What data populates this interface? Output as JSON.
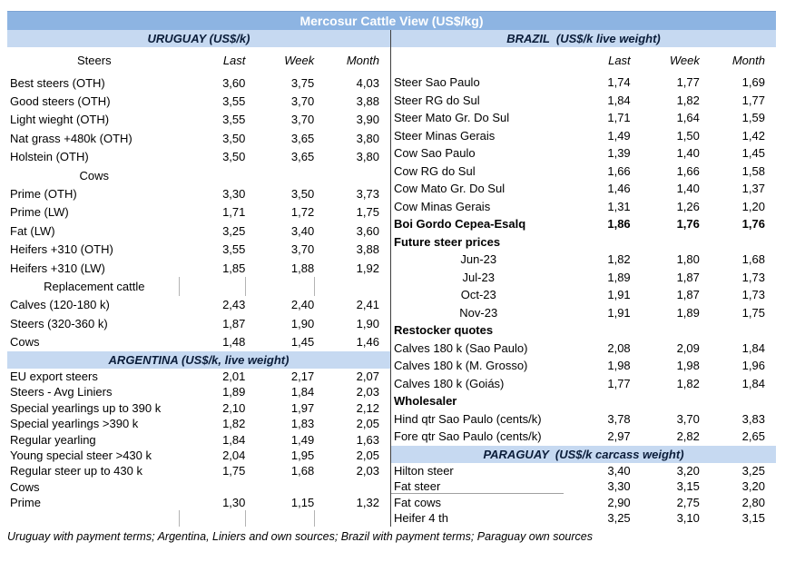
{
  "title": "Mercosur Cattle View (US$/kg)",
  "footnote": "Uruguay with payment terms; Argentina, Liniers and own sources; Brazil with payment terms; Paraguay own sources",
  "colors": {
    "title_bg": "#8DB4E2",
    "title_text": "#FFFFFF",
    "section_bg": "#C6D9F1",
    "section_text": "#0B1D3A",
    "divider": "#3F3F3F",
    "text": "#000000"
  },
  "left": {
    "sections": [
      {
        "key": "uruguay",
        "header": "URUGUAY (US$/k)",
        "col_header": {
          "label": "Steers",
          "cols": [
            "Last",
            "Week",
            "Month"
          ]
        },
        "rows": [
          {
            "label": "Best steers (OTH)",
            "style": "data",
            "values": [
              "3,60",
              "3,75",
              "4,03"
            ]
          },
          {
            "label": "Good steers (OTH)",
            "style": "data",
            "values": [
              "3,55",
              "3,70",
              "3,88"
            ]
          },
          {
            "label": "Light wieght (OTH)",
            "style": "data",
            "values": [
              "3,55",
              "3,70",
              "3,90"
            ]
          },
          {
            "label": "Nat grass +480k (OTH)",
            "style": "data",
            "values": [
              "3,50",
              "3,65",
              "3,80"
            ]
          },
          {
            "label": "Holstein (OTH)",
            "style": "data",
            "values": [
              "3,50",
              "3,65",
              "3,80"
            ]
          },
          {
            "label": "Cows",
            "style": "sub",
            "values": null
          },
          {
            "label": "Prime (OTH)",
            "style": "data",
            "values": [
              "3,30",
              "3,50",
              "3,73"
            ]
          },
          {
            "label": "Prime (LW)",
            "style": "data",
            "values": [
              "1,71",
              "1,72",
              "1,75"
            ]
          },
          {
            "label": "Fat (LW)",
            "style": "data",
            "values": [
              "3,25",
              "3,40",
              "3,60"
            ]
          },
          {
            "label": "Heifers +310 (OTH)",
            "style": "data",
            "values": [
              "3,55",
              "3,70",
              "3,88"
            ]
          },
          {
            "label": "Heifers +310 (LW)",
            "style": "data",
            "values": [
              "1,85",
              "1,88",
              "1,92"
            ]
          },
          {
            "label": "Replacement cattle",
            "style": "sub",
            "values": null,
            "ticks": true
          },
          {
            "label": "Calves (120-180 k)",
            "style": "data",
            "values": [
              "2,43",
              "2,40",
              "2,41"
            ]
          },
          {
            "label": "Steers (320-360 k)",
            "style": "data",
            "values": [
              "1,87",
              "1,90",
              "1,90"
            ]
          },
          {
            "label": "Cows",
            "style": "data",
            "values": [
              "1,48",
              "1,45",
              "1,46"
            ]
          }
        ]
      },
      {
        "key": "argentina",
        "header": "ARGENTINA (US$/k, live weight)",
        "col_header": null,
        "rows": [
          {
            "label": "EU export steers",
            "style": "data",
            "values": [
              "2,01",
              "2,17",
              "2,07"
            ]
          },
          {
            "label": "Steers - Avg Liniers",
            "style": "data",
            "values": [
              "1,89",
              "1,84",
              "2,03"
            ]
          },
          {
            "label": "Special yearlings up to 390 k",
            "style": "data",
            "values": [
              "2,10",
              "1,97",
              "2,12"
            ]
          },
          {
            "label": "Special yearlings >390 k",
            "style": "data",
            "values": [
              "1,82",
              "1,83",
              "2,05"
            ]
          },
          {
            "label": "Regular yearling",
            "style": "data",
            "values": [
              "1,84",
              "1,49",
              "1,63"
            ]
          },
          {
            "label": "Young special steer >430 k",
            "style": "data",
            "values": [
              "2,04",
              "1,95",
              "2,05"
            ]
          },
          {
            "label": "Regular steer up to 430 k",
            "style": "data",
            "values": [
              "1,75",
              "1,68",
              "2,03"
            ]
          },
          {
            "label": "Cows",
            "style": "data",
            "values": null
          },
          {
            "label": "Prime",
            "style": "data",
            "values": [
              "1,30",
              "1,15",
              "1,32"
            ]
          },
          {
            "label": "",
            "style": "data",
            "values": null,
            "ticks": true
          }
        ]
      }
    ]
  },
  "right": {
    "sections": [
      {
        "key": "brazil",
        "header": "BRAZIL  (US$/k live weight)",
        "col_header": {
          "label": "",
          "cols": [
            "Last",
            "Week",
            "Month"
          ]
        },
        "rows": [
          {
            "label": "Steer Sao Paulo",
            "style": "data",
            "values": [
              "1,74",
              "1,77",
              "1,69"
            ]
          },
          {
            "label": "Steer RG do Sul",
            "style": "data",
            "values": [
              "1,84",
              "1,82",
              "1,77"
            ]
          },
          {
            "label": "Steer Mato Gr. Do Sul",
            "style": "data",
            "values": [
              "1,71",
              "1,64",
              "1,59"
            ]
          },
          {
            "label": "Steer Minas Gerais",
            "style": "data",
            "values": [
              "1,49",
              "1,50",
              "1,42"
            ]
          },
          {
            "label": "Cow Sao Paulo",
            "style": "data",
            "values": [
              "1,39",
              "1,40",
              "1,45"
            ]
          },
          {
            "label": "Cow RG do Sul",
            "style": "data",
            "values": [
              "1,66",
              "1,66",
              "1,58"
            ]
          },
          {
            "label": "Cow Mato Gr. Do Sul",
            "style": "data",
            "values": [
              "1,46",
              "1,40",
              "1,37"
            ]
          },
          {
            "label": "Cow Minas Gerais",
            "style": "data",
            "values": [
              "1,31",
              "1,26",
              "1,20"
            ]
          },
          {
            "label": "Boi Gordo Cepea-Esalq",
            "style": "bold",
            "values": [
              "1,86",
              "1,76",
              "1,76"
            ]
          },
          {
            "label": "Future steer prices",
            "style": "boldlabel",
            "values": null
          },
          {
            "label": "Jun-23",
            "style": "subdata",
            "values": [
              "1,82",
              "1,80",
              "1,68"
            ]
          },
          {
            "label": "Jul-23",
            "style": "subdata",
            "values": [
              "1,89",
              "1,87",
              "1,73"
            ]
          },
          {
            "label": "Oct-23",
            "style": "subdata",
            "values": [
              "1,91",
              "1,87",
              "1,73"
            ]
          },
          {
            "label": "Nov-23",
            "style": "subdata",
            "values": [
              "1,91",
              "1,89",
              "1,75"
            ]
          },
          {
            "label": "Restocker quotes",
            "style": "boldlabel",
            "values": null
          },
          {
            "label": "Calves 180 k (Sao Paulo)",
            "style": "data",
            "values": [
              "2,08",
              "2,09",
              "1,84"
            ]
          },
          {
            "label": "Calves 180 k (M. Grosso)",
            "style": "data",
            "values": [
              "1,98",
              "1,98",
              "1,96"
            ]
          },
          {
            "label": "Calves 180 k (Goiás)",
            "style": "data",
            "values": [
              "1,77",
              "1,82",
              "1,84"
            ]
          },
          {
            "label": "Wholesaler",
            "style": "boldlabel",
            "values": null
          },
          {
            "label": "Hind qtr Sao Paulo (cents/k)",
            "style": "data",
            "values": [
              "3,78",
              "3,70",
              "3,83"
            ]
          },
          {
            "label": "Fore qtr Sao Paulo (cents/k)",
            "style": "data",
            "values": [
              "2,97",
              "2,82",
              "2,65"
            ]
          }
        ]
      },
      {
        "key": "paraguay",
        "header": "PARAGUAY  (US$/k carcass weight)",
        "col_header": null,
        "rows": [
          {
            "label": "Hilton steer",
            "style": "data",
            "values": [
              "3,40",
              "3,20",
              "3,25"
            ]
          },
          {
            "label": "Fat steer",
            "style": "data",
            "values": [
              "3,30",
              "3,15",
              "3,20"
            ],
            "uline": true
          },
          {
            "label": "Fat cows",
            "style": "data",
            "values": [
              "2,90",
              "2,75",
              "2,80"
            ]
          },
          {
            "label": "Heifer 4 th",
            "style": "data",
            "values": [
              "3,25",
              "3,10",
              "3,15"
            ]
          }
        ]
      }
    ]
  }
}
